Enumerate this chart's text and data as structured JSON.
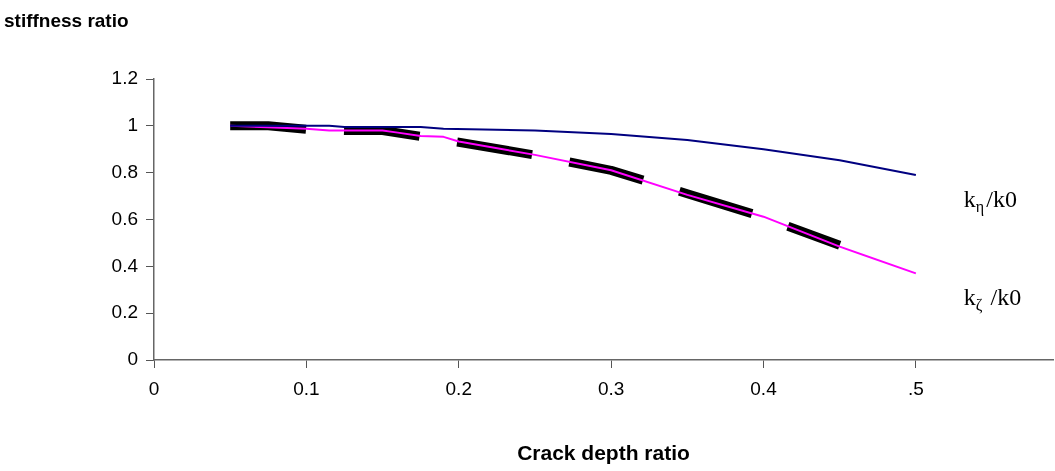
{
  "chart_data": {
    "type": "line",
    "xlabel": "Crack depth ratio",
    "ylabel": "stiffness ratio",
    "xlim": [
      0,
      0.59
    ],
    "xticks": [
      0,
      0.1,
      0.2,
      0.3,
      0.4,
      {
        "value": 0.5,
        "label": ".5"
      }
    ],
    "ylim": [
      0,
      1.2
    ],
    "yticks": [
      0,
      0.2,
      0.4,
      0.6,
      0.8,
      1,
      1.2
    ],
    "grid": false,
    "legend": false,
    "marker": "none",
    "series": [
      {
        "name": "k$_{η}$/k0",
        "color": "#000080",
        "line_style": "solid",
        "x": [
          0.05,
          0.1,
          0.115,
          0.125,
          0.175,
          0.19,
          0.25,
          0.3,
          0.35,
          0.4,
          0.45,
          0.5
        ],
        "values": [
          1.0,
          1.0,
          1.0,
          0.995,
          0.995,
          0.988,
          0.98,
          0.965,
          0.94,
          0.9,
          0.853,
          0.79
        ]
      },
      {
        "name": "k$_{ζ}$ /k0",
        "color": "#ff00ff",
        "line_style": "solid",
        "x": [
          0.05,
          0.1,
          0.115,
          0.15,
          0.16,
          0.175,
          0.19,
          0.2,
          0.25,
          0.3,
          0.35,
          0.4,
          0.45,
          0.5
        ],
        "values": [
          1.0,
          0.988,
          0.98,
          0.98,
          0.971,
          0.957,
          0.953,
          0.933,
          0.876,
          0.81,
          0.705,
          0.612,
          0.484,
          0.37
        ]
      },
      {
        "color": "#000000",
        "line_style": "dashed",
        "x": [
          0.05,
          0.075,
          0.1,
          0.125,
          0.15,
          0.2,
          0.25,
          0.3,
          0.35,
          0.4,
          0.45
        ],
        "values": [
          1.0,
          1.0,
          0.985,
          0.98,
          0.98,
          0.93,
          0.875,
          0.81,
          0.71,
          0.61,
          0.49
        ]
      }
    ]
  }
}
